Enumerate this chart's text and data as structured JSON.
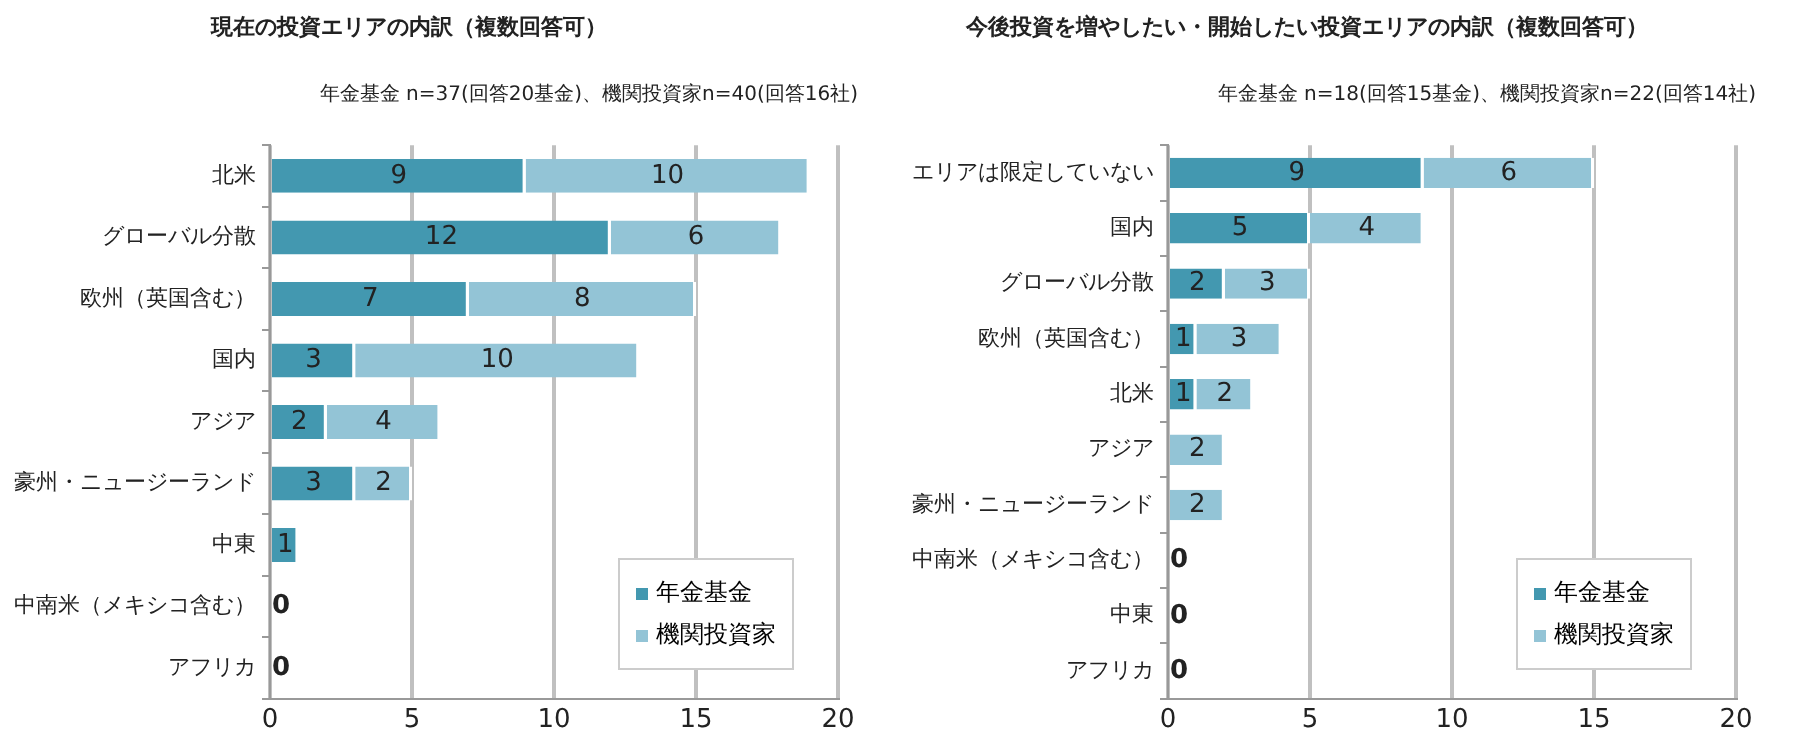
{
  "chart_data": [
    {
      "type": "bar",
      "orientation": "horizontal",
      "stacked": true,
      "title": "現在の投資エリアの内訳（複数回答可）",
      "subtitle": "年金基金 n=37(回答20基金)、機関投資家n=40(回答16社)",
      "categories": [
        "北米",
        "グローバル分散",
        "欧州（英国含む）",
        "国内",
        "アジア",
        "豪州・ニュージーランド",
        "中東",
        "中南米（メキシコ含む）",
        "アフリカ"
      ],
      "series": [
        {
          "name": "年金基金",
          "color": "#4398b0",
          "values": [
            9,
            12,
            7,
            3,
            2,
            3,
            1,
            0,
            0
          ],
          "value_labels": [
            "9",
            "12",
            "7",
            "3",
            "2",
            "3",
            "1",
            "0",
            "0"
          ]
        },
        {
          "name": "機関投資家",
          "color": "#93c4d6",
          "values": [
            10,
            6,
            8,
            10,
            4,
            2,
            0,
            0,
            0
          ],
          "value_labels": [
            "10",
            "6",
            "8",
            "10",
            "4",
            "2",
            null,
            null,
            null
          ]
        }
      ],
      "xlim": [
        0,
        20
      ],
      "xticks": [
        0,
        5,
        10,
        15,
        20
      ],
      "grid": "x",
      "legend": "bottom right"
    },
    {
      "type": "bar",
      "orientation": "horizontal",
      "stacked": true,
      "title": "今後投資を増やしたい・開始したい投資エリアの内訳（複数回答可）",
      "subtitle": "年金基金 n=18(回答15基金)、機関投資家n=22(回答14社)",
      "categories": [
        "エリアは限定していない",
        "国内",
        "グローバル分散",
        "欧州（英国含む）",
        "北米",
        "アジア",
        "豪州・ニュージーランド",
        "中南米（メキシコ含む）",
        "中東",
        "アフリカ"
      ],
      "series": [
        {
          "name": "年金基金",
          "color": "#4398b0",
          "values": [
            9,
            5,
            2,
            1,
            1,
            0,
            0,
            0,
            0,
            0
          ],
          "value_labels": [
            "9",
            "5",
            "2",
            "1",
            "1",
            null,
            null,
            "0",
            "0",
            "0"
          ]
        },
        {
          "name": "機関投資家",
          "color": "#93c4d6",
          "values": [
            6,
            4,
            3,
            3,
            2,
            2,
            2,
            0,
            0,
            0
          ],
          "value_labels": [
            "6",
            "4",
            "3",
            "3",
            "2",
            "2",
            "2",
            null,
            null,
            null
          ]
        }
      ],
      "xlim": [
        0,
        20
      ],
      "xticks": [
        0,
        5,
        10,
        15,
        20
      ],
      "grid": "x",
      "legend": "bottom right"
    }
  ]
}
